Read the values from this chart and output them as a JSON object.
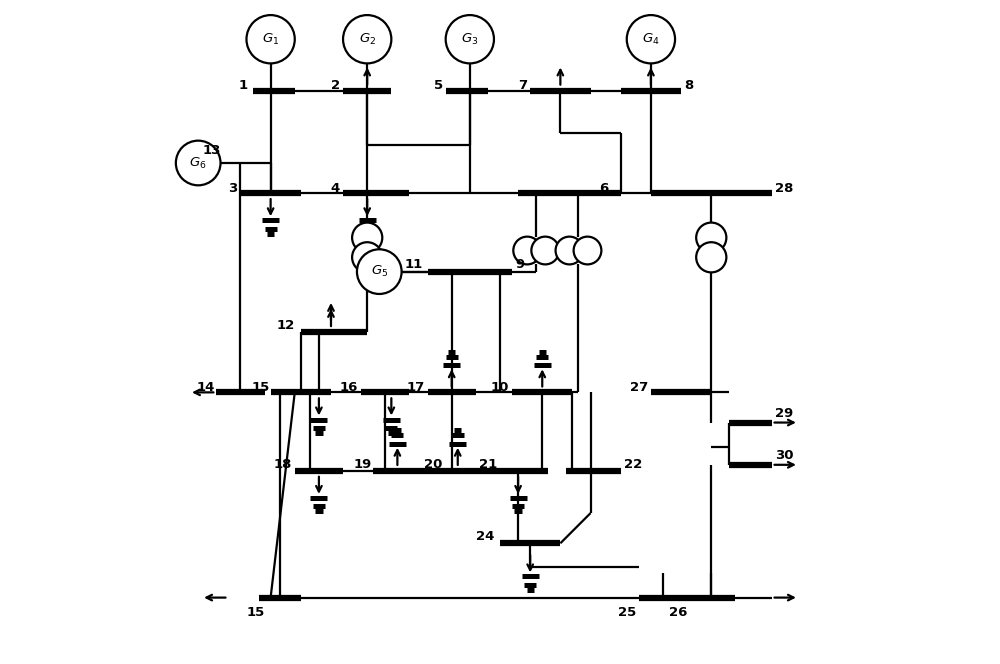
{
  "figsize": [
    10.0,
    6.64
  ],
  "dpi": 100,
  "bg_color": "white",
  "lc": "black",
  "lw": 1.6,
  "blw": 4.5,
  "xlim": [
    -0.5,
    10.5
  ],
  "ylim": [
    0.0,
    11.0
  ]
}
